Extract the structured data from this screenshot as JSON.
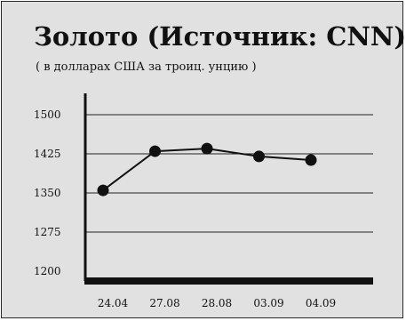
{
  "chart_data": {
    "type": "line",
    "title": "Золото (Источник: CNN)",
    "subtitle": "( в долларах США за троиц. унцию )",
    "categories": [
      "24.04",
      "27.08",
      "28.08",
      "03.09",
      "04.09"
    ],
    "series": [
      {
        "values": [
          1355,
          1430,
          1435,
          1420,
          1413
        ]
      }
    ],
    "yticks": [
      1200,
      1275,
      1350,
      1425,
      1500
    ],
    "ylim": [
      1200,
      1500
    ],
    "grid": true,
    "colors": {
      "line": "#111111",
      "background": "#e1e1e1"
    }
  }
}
